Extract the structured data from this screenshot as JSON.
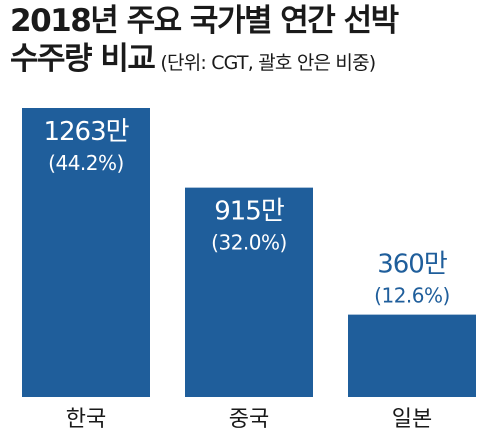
{
  "title": {
    "line1": "2018년 주요 국가별 연간 선박",
    "line2_main": "수주량 비교",
    "line2_unit": "(단위: CGT, 괄호 안은 비중)"
  },
  "colors": {
    "bar": "#1f5e9b",
    "label_outside": "#1f5e9b",
    "label_inside": "#ffffff"
  },
  "chart_data": {
    "type": "bar",
    "title": "2018년 주요 국가별 연간 선박 수주량 비교",
    "subtitle": "(단위: CGT, 괄호 안은 비중)",
    "categories": [
      "한국",
      "중국",
      "일본"
    ],
    "values": [
      12630000,
      9150000,
      3600000
    ],
    "value_labels": [
      "1263만",
      "915만",
      "360만"
    ],
    "share_labels": [
      "(44.2%)",
      "(32.0%)",
      "(12.6%)"
    ],
    "shares": [
      44.2,
      32.0,
      12.6
    ],
    "xlabel": "",
    "ylabel": "",
    "grid": false,
    "legend": "none"
  }
}
